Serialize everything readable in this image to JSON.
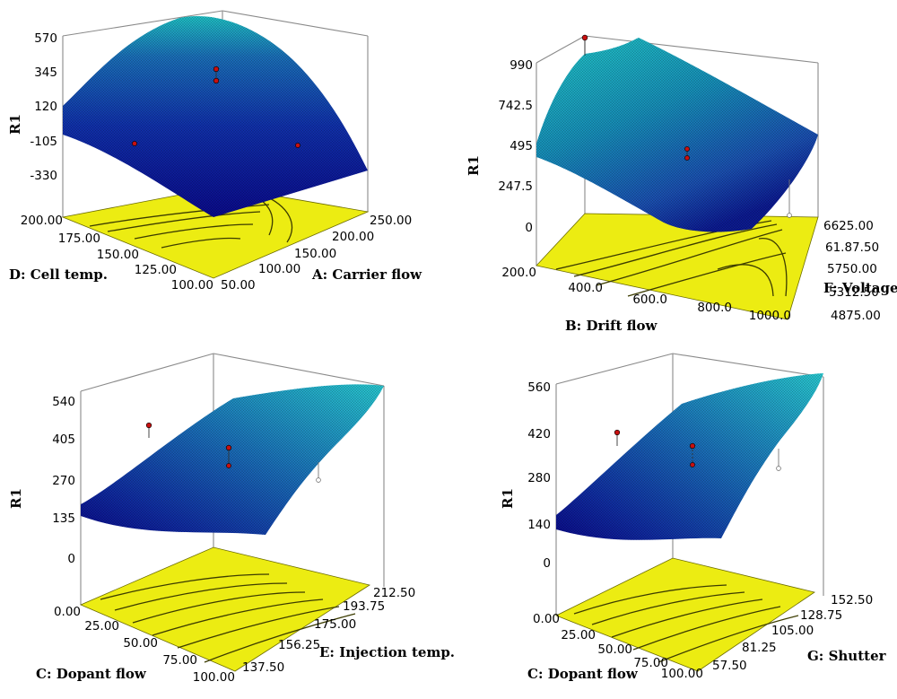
{
  "chart_data": [
    {
      "id": "p1",
      "type": "surface3d",
      "zlabel": "R1",
      "zticks": [
        "-330",
        "-105",
        "120",
        "345",
        "570"
      ],
      "xlabel": "A: Carrier flow",
      "xticks": [
        "50.00",
        "100.00",
        "150.00",
        "200.00",
        "250.00"
      ],
      "ylabel": "D: Cell temp.",
      "yticks": [
        "100.00",
        "125.00",
        "150.00",
        "175.00",
        "200.00"
      ],
      "x_range": [
        50,
        250
      ],
      "y_range": [
        100,
        200
      ],
      "z_range": [
        -330,
        570
      ],
      "surface_shape": "inverted dome, maximum ≈570 near the back, dropping to ≈-330 at the front corner",
      "contour_base": "yellow"
    },
    {
      "id": "p2",
      "type": "surface3d",
      "zlabel": "R1",
      "zticks": [
        "0",
        "247.5",
        "495",
        "742.5",
        "990"
      ],
      "xlabel": "B: Drift flow",
      "xticks": [
        "200.0",
        "400.0",
        "600.0",
        "800.0",
        "1000.0"
      ],
      "ylabel": "F: Voltage",
      "yticks": [
        "4875.00",
        "5312.50",
        "5750.00",
        "61.87.50",
        "6625.00"
      ],
      "x_range": [
        200,
        1000
      ],
      "y_range": [
        4875,
        6625
      ],
      "z_range": [
        0,
        990
      ],
      "surface_shape": "saddle, high (≈990) at the back corner, minimum near 200",
      "contour_base": "yellow"
    },
    {
      "id": "p3",
      "type": "surface3d",
      "zlabel": "R1",
      "zticks": [
        "0",
        "135",
        "270",
        "405",
        "540"
      ],
      "xlabel": "C: Dopant flow",
      "xticks": [
        "0.00",
        "25.00",
        "50.00",
        "75.00",
        "100.00"
      ],
      "ylabel": "E: Injection temp.",
      "yticks": [
        "137.50",
        "156.25",
        "175.00",
        "193.75",
        "212.50"
      ],
      "x_range": [
        0,
        100
      ],
      "y_range": [
        137.5,
        212.5
      ],
      "z_range": [
        0,
        540
      ],
      "surface_shape": "rising plane with slight curvature, ≈175 at the left to ≈540 at the back-right",
      "contour_base": "yellow"
    },
    {
      "id": "p4",
      "type": "surface3d",
      "zlabel": "R1",
      "zticks": [
        "0",
        "140",
        "280",
        "420",
        "560"
      ],
      "xlabel": "C: Dopant flow",
      "xticks": [
        "0.00",
        "25.00",
        "50.00",
        "75.00",
        "100.00"
      ],
      "ylabel": "G: Shutter",
      "yticks": [
        "57.50",
        "81.25",
        "105.00",
        "128.75",
        "152.50"
      ],
      "x_range": [
        0,
        100
      ],
      "y_range": [
        57.5,
        152.5
      ],
      "z_range": [
        0,
        560
      ],
      "surface_shape": "rising plane with slight curvature, ≈160 at the left to ≈560 at the back-right",
      "contour_base": "yellow"
    }
  ],
  "colors": {
    "surface_low": "#0a0aa0",
    "surface_mid": "#1a4fb0",
    "surface_high": "#1fbfc4",
    "base": "#ecec12",
    "frame": "#8a8a8a",
    "point": "#c81010"
  }
}
